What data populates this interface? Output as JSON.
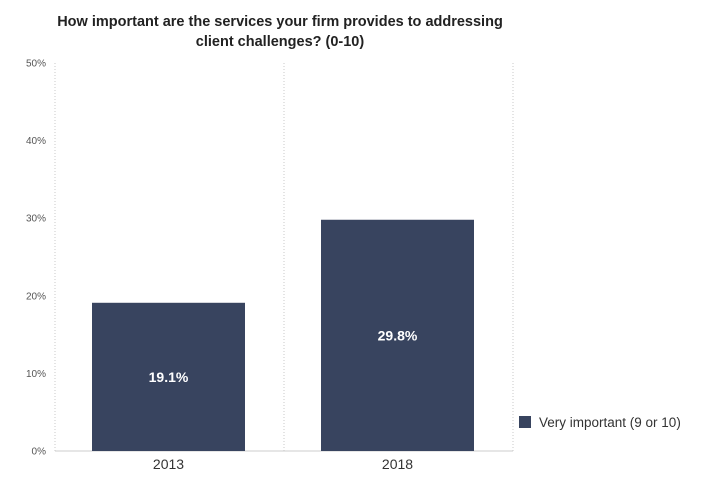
{
  "chart_data": {
    "type": "bar",
    "title": "How important are the services your firm provides to addressing client challenges? (0-10)",
    "categories": [
      "2013",
      "2018"
    ],
    "series": [
      {
        "name": "Very important (9 or 10)",
        "values": [
          19.1,
          29.8
        ],
        "labels": [
          "19.1%",
          "29.8%"
        ],
        "color": "#38445f"
      }
    ],
    "ylim": [
      0,
      50
    ],
    "yticks": [
      0,
      10,
      20,
      30,
      40,
      50
    ],
    "ytick_labels": [
      "0%",
      "10%",
      "20%",
      "30%",
      "40%",
      "50%"
    ],
    "grid": "vertical dotted separators",
    "legend_placement": "right"
  }
}
